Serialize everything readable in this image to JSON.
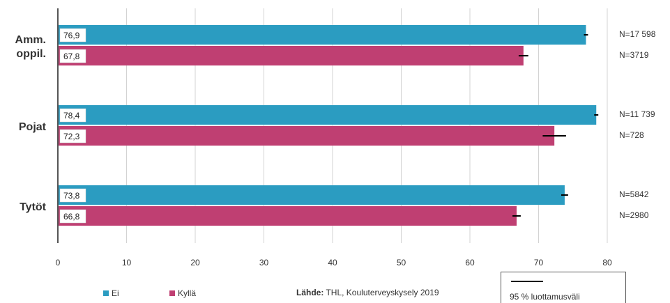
{
  "chart_data": {
    "type": "bar",
    "orientation": "horizontal",
    "categories": [
      "Amm. oppil.",
      "Pojat",
      "Tytöt"
    ],
    "category_lines": [
      [
        "Amm.",
        "oppil."
      ],
      [
        "Pojat"
      ],
      [
        "Tytöt"
      ]
    ],
    "series": [
      {
        "name": "Ei",
        "color": "#2b9cc1",
        "values": [
          76.9,
          78.4,
          73.8
        ],
        "labels": [
          "76,9",
          "78,4",
          "73,8"
        ],
        "ci_low": [
          76.6,
          78.1,
          73.3
        ],
        "ci_high": [
          77.2,
          78.7,
          74.3
        ],
        "n": [
          "N=17 598",
          "N=11 739",
          "N=5842"
        ]
      },
      {
        "name": "Kyllä",
        "color": "#bf3f72",
        "values": [
          67.8,
          72.3,
          66.8
        ],
        "labels": [
          "67,8",
          "72,3",
          "66,8"
        ],
        "ci_low": [
          67.1,
          70.6,
          66.2
        ],
        "ci_high": [
          68.5,
          74.0,
          67.4
        ],
        "n": [
          "N=3719",
          "N=728",
          "N=2980"
        ]
      }
    ],
    "xlim": [
      0,
      80
    ],
    "xticks": [
      0,
      10,
      20,
      30,
      40,
      50,
      60,
      70,
      80
    ],
    "grid": true,
    "xlabel": "",
    "ylabel": "",
    "title": ""
  },
  "legend": {
    "items": [
      {
        "label": "Ei",
        "color": "#2b9cc1"
      },
      {
        "label": "Kyllä",
        "color": "#bf3f72"
      }
    ]
  },
  "source": {
    "bold": "Lähde:",
    "text": " THL, Kouluterveyskysely 2019"
  },
  "ci_legend": {
    "label": "95 % luottamusväli"
  }
}
